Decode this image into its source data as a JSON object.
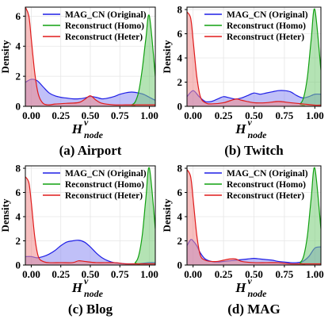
{
  "chart_data": [
    {
      "type": "area",
      "caption": "(a) Airport",
      "ylabel": "Density",
      "xlabel": {
        "main": "H",
        "sup": "v",
        "sub": "node"
      },
      "xlim": [
        -0.05,
        1.05
      ],
      "ylim": [
        0,
        6.6
      ],
      "xticks": [
        "0.00",
        "0.25",
        "0.50",
        "0.75",
        "1.00"
      ],
      "yticks": [
        "0",
        "2",
        "4",
        "6"
      ],
      "legend": [
        "MAG_CN (Original)",
        "Reconstruct (Homo)",
        "Reconstruct (Heter)"
      ],
      "series": [
        {
          "name": "MAG_CN (Original)",
          "x": [
            -0.05,
            0,
            0.05,
            0.1,
            0.15,
            0.2,
            0.25,
            0.3,
            0.35,
            0.4,
            0.45,
            0.5,
            0.55,
            0.6,
            0.65,
            0.7,
            0.75,
            0.8,
            0.85,
            0.9,
            0.95,
            1.0,
            1.05
          ],
          "y": [
            1.6,
            1.8,
            1.7,
            1.3,
            0.9,
            0.7,
            0.6,
            0.55,
            0.5,
            0.5,
            0.55,
            0.65,
            0.6,
            0.5,
            0.55,
            0.65,
            0.8,
            0.9,
            0.95,
            0.9,
            0.8,
            0.6,
            0.4
          ]
        },
        {
          "name": "Reconstruct (Homo)",
          "x": [
            -0.05,
            0.8,
            0.85,
            0.88,
            0.91,
            0.94,
            0.97,
            1.0,
            1.05
          ],
          "y": [
            0.0,
            0.0,
            0.1,
            0.3,
            1.0,
            2.5,
            4.5,
            6.0,
            2.0
          ]
        },
        {
          "name": "Reconstruct (Heter)",
          "x": [
            -0.05,
            -0.02,
            0,
            0.03,
            0.06,
            0.1,
            0.15,
            0.2,
            0.3,
            0.4,
            0.45,
            0.5,
            0.55,
            0.6,
            0.7,
            0.8,
            0.9,
            1.0,
            1.05
          ],
          "y": [
            6.7,
            6.0,
            4.5,
            2.2,
            0.8,
            0.2,
            0.1,
            0.15,
            0.2,
            0.25,
            0.45,
            0.7,
            0.4,
            0.2,
            0.1,
            0.1,
            0.1,
            0.1,
            0.1
          ]
        }
      ]
    },
    {
      "type": "area",
      "caption": "(b) Twitch",
      "ylabel": "Density",
      "xlabel": {
        "main": "H",
        "sup": "v",
        "sub": "node"
      },
      "xlim": [
        -0.05,
        1.05
      ],
      "ylim": [
        0,
        8.2
      ],
      "xticks": [
        "0.00",
        "0.25",
        "0.50",
        "0.75",
        "1.00"
      ],
      "yticks": [
        "0",
        "2",
        "4",
        "6",
        "8"
      ],
      "legend": [
        "MAG_CN (Original)",
        "Reconstruct (Homo)",
        "Reconstruct (Heter)"
      ],
      "series": [
        {
          "name": "MAG_CN (Original)",
          "x": [
            -0.05,
            0,
            0.05,
            0.1,
            0.15,
            0.2,
            0.25,
            0.3,
            0.35,
            0.4,
            0.45,
            0.5,
            0.55,
            0.6,
            0.65,
            0.7,
            0.75,
            0.8,
            0.85,
            0.9,
            0.95,
            1.0,
            1.05
          ],
          "y": [
            0.8,
            1.3,
            0.8,
            0.4,
            0.4,
            0.6,
            0.8,
            0.7,
            0.6,
            0.7,
            0.9,
            1.1,
            1.0,
            1.1,
            1.2,
            1.3,
            1.3,
            1.2,
            0.9,
            0.7,
            0.8,
            1.0,
            1.0
          ]
        },
        {
          "name": "Reconstruct (Homo)",
          "x": [
            -0.05,
            0.84,
            0.88,
            0.91,
            0.94,
            0.97,
            1.0,
            1.05
          ],
          "y": [
            0.0,
            0.0,
            0.2,
            0.8,
            2.5,
            5.5,
            8.0,
            3.0
          ]
        },
        {
          "name": "Reconstruct (Heter)",
          "x": [
            -0.05,
            -0.02,
            0,
            0.03,
            0.06,
            0.1,
            0.15,
            0.25,
            0.35,
            0.4,
            0.5,
            0.6,
            0.7,
            0.8,
            0.9,
            1.0,
            1.05
          ],
          "y": [
            7.8,
            7.3,
            5.5,
            2.5,
            0.8,
            0.3,
            0.2,
            0.3,
            0.6,
            0.5,
            0.3,
            0.3,
            0.4,
            0.3,
            0.2,
            0.1,
            0.1
          ]
        }
      ]
    },
    {
      "type": "area",
      "caption": "(c) Blog",
      "ylabel": "Density",
      "xlabel": {
        "main": "H",
        "sup": "v",
        "sub": "node"
      },
      "xlim": [
        -0.05,
        1.05
      ],
      "ylim": [
        0,
        8.2
      ],
      "xticks": [
        "0.00",
        "0.25",
        "0.50",
        "0.75",
        "1.00"
      ],
      "yticks": [
        "0",
        "2",
        "4",
        "6",
        "8"
      ],
      "legend": [
        "MAG_CN (Original)",
        "Reconstruct (Homo)",
        "Reconstruct (Heter)"
      ],
      "series": [
        {
          "name": "MAG_CN (Original)",
          "x": [
            -0.05,
            0,
            0.05,
            0.1,
            0.15,
            0.2,
            0.25,
            0.3,
            0.35,
            0.4,
            0.45,
            0.5,
            0.55,
            0.6,
            0.65,
            0.7,
            0.75,
            0.8,
            0.85,
            0.9,
            0.95,
            1.0,
            1.05
          ],
          "y": [
            0.7,
            0.7,
            0.6,
            0.7,
            0.9,
            1.2,
            1.6,
            1.9,
            2.0,
            2.05,
            1.9,
            1.5,
            1.0,
            0.6,
            0.35,
            0.2,
            0.15,
            0.1,
            0.1,
            0.1,
            0.15,
            0.2,
            0.2
          ]
        },
        {
          "name": "Reconstruct (Homo)",
          "x": [
            -0.05,
            0.84,
            0.88,
            0.91,
            0.94,
            0.97,
            1.0,
            1.05
          ],
          "y": [
            0.0,
            0.0,
            0.2,
            0.8,
            2.5,
            5.5,
            8.0,
            3.0
          ]
        },
        {
          "name": "Reconstruct (Heter)",
          "x": [
            -0.05,
            -0.02,
            0,
            0.03,
            0.06,
            0.1,
            0.15,
            0.25,
            0.35,
            0.4,
            0.45,
            0.55,
            0.7,
            0.8,
            0.9,
            1.0,
            1.05
          ],
          "y": [
            7.3,
            6.8,
            5.2,
            2.3,
            0.7,
            0.3,
            0.2,
            0.2,
            0.2,
            0.35,
            0.3,
            0.2,
            0.2,
            0.1,
            0.1,
            0.1,
            0.1
          ]
        }
      ]
    },
    {
      "type": "area",
      "caption": "(d) MAG",
      "ylabel": "Density",
      "xlabel": {
        "main": "H",
        "sup": "v",
        "sub": "node"
      },
      "xlim": [
        -0.05,
        1.05
      ],
      "ylim": [
        0,
        8.2
      ],
      "xticks": [
        "0.00",
        "0.25",
        "0.50",
        "0.75",
        "1.00"
      ],
      "yticks": [
        "0",
        "2",
        "4",
        "6",
        "8"
      ],
      "legend": [
        "MAG_CN (Original)",
        "Reconstruct (Homo)",
        "Reconstruct (Heter)"
      ],
      "series": [
        {
          "name": "MAG_CN (Original)",
          "x": [
            -0.05,
            -0.02,
            0,
            0.03,
            0.06,
            0.1,
            0.15,
            0.2,
            0.25,
            0.3,
            0.35,
            0.4,
            0.45,
            0.5,
            0.55,
            0.6,
            0.65,
            0.7,
            0.75,
            0.8,
            0.85,
            0.9,
            0.95,
            1.0,
            1.05
          ],
          "y": [
            1.6,
            2.1,
            2.0,
            1.6,
            1.0,
            0.5,
            0.3,
            0.25,
            0.3,
            0.35,
            0.4,
            0.45,
            0.5,
            0.55,
            0.5,
            0.45,
            0.4,
            0.3,
            0.25,
            0.2,
            0.2,
            0.3,
            0.7,
            1.4,
            1.5
          ]
        },
        {
          "name": "Reconstruct (Homo)",
          "x": [
            -0.05,
            0.84,
            0.88,
            0.91,
            0.94,
            0.97,
            1.0,
            1.05
          ],
          "y": [
            0.0,
            0.0,
            0.2,
            0.8,
            2.5,
            5.5,
            8.0,
            3.0
          ]
        },
        {
          "name": "Reconstruct (Heter)",
          "x": [
            -0.05,
            -0.02,
            0,
            0.03,
            0.06,
            0.1,
            0.15,
            0.2,
            0.25,
            0.3,
            0.35,
            0.4,
            0.5,
            0.6,
            0.7,
            0.8,
            0.9,
            1.0,
            1.05
          ],
          "y": [
            7.9,
            7.3,
            5.5,
            2.5,
            0.8,
            0.4,
            0.3,
            0.3,
            0.4,
            0.5,
            0.5,
            0.3,
            0.2,
            0.2,
            0.2,
            0.1,
            0.1,
            0.1,
            0.1
          ]
        }
      ]
    }
  ],
  "colors": {
    "original": "#1f1fe6",
    "original_fill": "#8c8cf2",
    "homo": "#11a011",
    "homo_fill": "#77cc77",
    "heter": "#e01b1b",
    "heter_fill": "#f08a8a",
    "grid": "#e6e6e6"
  }
}
